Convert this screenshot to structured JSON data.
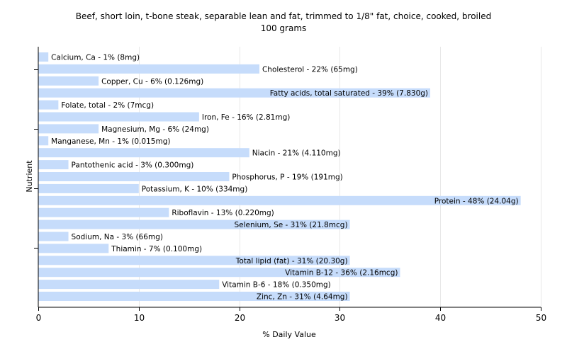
{
  "chart_data": {
    "type": "bar",
    "orientation": "horizontal",
    "title": "Beef, short loin, t-bone steak, separable lean and fat, trimmed to 1/8\" fat, choice, cooked, broiled",
    "subtitle": "100 grams",
    "xlabel": "% Daily Value",
    "ylabel": "Nutrient",
    "xlim": [
      0,
      50
    ],
    "xticks": [
      "0",
      "10",
      "20",
      "30",
      "40",
      "50"
    ],
    "grid": true,
    "bar_color": "#c6dcfb",
    "grid_color": "#e8e8e8",
    "categories": [
      "Calcium, Ca",
      "Cholesterol",
      "Copper, Cu",
      "Fatty acids, total saturated",
      "Folate, total",
      "Iron, Fe",
      "Magnesium, Mg",
      "Manganese, Mn",
      "Niacin",
      "Pantothenic acid",
      "Phosphorus, P",
      "Potassium, K",
      "Protein",
      "Riboflavin",
      "Selenium, Se",
      "Sodium, Na",
      "Thiamin",
      "Total lipid (fat)",
      "Vitamin B-12",
      "Vitamin B-6",
      "Zinc, Zn"
    ],
    "values": [
      1,
      22,
      6,
      39,
      2,
      16,
      6,
      1,
      21,
      3,
      19,
      10,
      48,
      13,
      31,
      3,
      7,
      31,
      36,
      18,
      31
    ],
    "bar_labels": [
      "Calcium, Ca - 1% (8mg)",
      "Cholesterol - 22% (65mg)",
      "Copper, Cu - 6% (0.126mg)",
      "Fatty acids, total saturated - 39% (7.830g)",
      "Folate, total - 2% (7mcg)",
      "Iron, Fe - 16% (2.81mg)",
      "Magnesium, Mg - 6% (24mg)",
      "Manganese, Mn - 1% (0.015mg)",
      "Niacin - 21% (4.110mg)",
      "Pantothenic acid - 3% (0.300mg)",
      "Phosphorus, P - 19% (191mg)",
      "Potassium, K - 10% (334mg)",
      "Protein - 48% (24.04g)",
      "Riboflavin - 13% (0.220mg)",
      "Selenium, Se - 31% (21.8mcg)",
      "Sodium, Na - 3% (66mg)",
      "Thiamin - 7% (0.100mg)",
      "Total lipid (fat) - 31% (20.30g)",
      "Vitamin B-12 - 36% (2.16mcg)",
      "Vitamin B-6 - 18% (0.350mg)",
      "Zinc, Zn - 31% (4.64mg)"
    ]
  }
}
